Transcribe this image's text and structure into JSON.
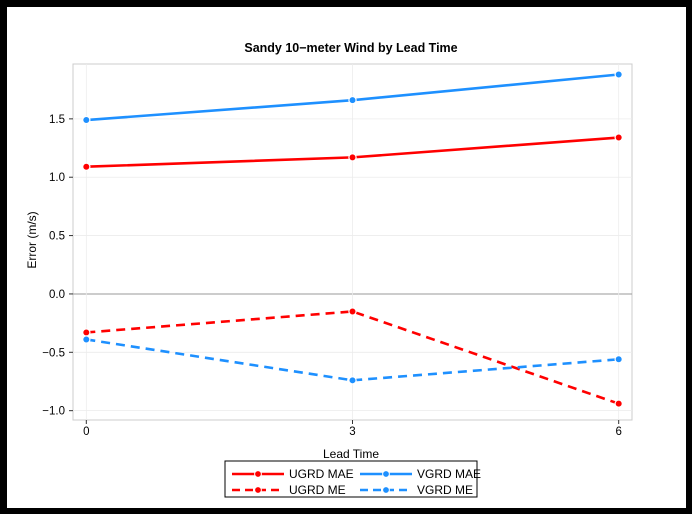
{
  "chart_data": {
    "type": "line",
    "title": "Sandy 10−meter Wind by Lead Time",
    "xlabel": "Lead Time",
    "ylabel": "Error (m/s)",
    "x": [
      0,
      3,
      6
    ],
    "xticks": [
      "0",
      "3",
      "6"
    ],
    "yticks": [
      "−1.0",
      "−0.5",
      "0.0",
      "0.5",
      "1.0",
      "1.5"
    ],
    "ytick_values": [
      -1.0,
      -0.5,
      0.0,
      0.5,
      1.0,
      1.5
    ],
    "xlim": [
      -0.15,
      6.15
    ],
    "ylim": [
      -1.08,
      1.97
    ],
    "grid": true,
    "zero_line": true,
    "legend_position": "bottom",
    "series": [
      {
        "name": "UGRD MAE",
        "color": "#ff0000",
        "dash": "solid",
        "values": [
          1.09,
          1.17,
          1.34
        ]
      },
      {
        "name": "UGRD ME",
        "color": "#ff0000",
        "dash": "dashed",
        "values": [
          -0.33,
          -0.15,
          -0.94
        ]
      },
      {
        "name": "VGRD MAE",
        "color": "#1e90ff",
        "dash": "solid",
        "values": [
          1.49,
          1.66,
          1.88
        ]
      },
      {
        "name": "VGRD ME",
        "color": "#1e90ff",
        "dash": "dashed",
        "values": [
          -0.39,
          -0.74,
          -0.56
        ]
      }
    ]
  }
}
